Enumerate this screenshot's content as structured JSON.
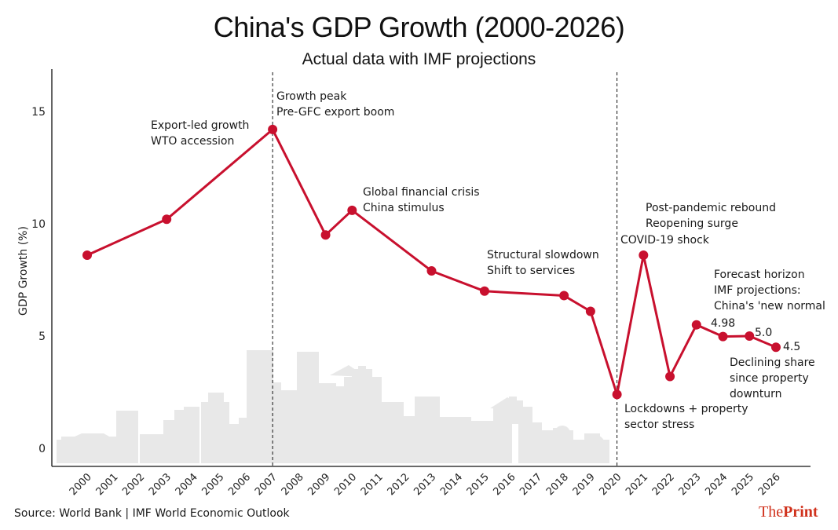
{
  "header": {
    "title": "China's GDP Growth (2000-2026)",
    "subtitle": "Actual data with IMF projections"
  },
  "footer": {
    "source": "Source: World Bank | IMF World Economic Outlook",
    "logo_the": "The",
    "logo_print": "Print"
  },
  "colors": {
    "line": "#c8102e",
    "skyline": "#e8e8e8",
    "logo": "#d0311c"
  },
  "chart_data": {
    "type": "line",
    "title": "China's GDP Growth (2000-2026)",
    "subtitle": "Actual data with IMF projections",
    "xlabel": "",
    "ylabel": "GDP Growth (%)",
    "ylim": [
      0,
      16.5
    ],
    "yticks": [
      0,
      5,
      10,
      15
    ],
    "grid": false,
    "legend": "none",
    "categories": [
      "2000",
      "2001",
      "2002",
      "2003",
      "2004",
      "2005",
      "2006",
      "2007",
      "2008",
      "2009",
      "2010",
      "2011",
      "2012",
      "2013",
      "2014",
      "2015",
      "2016",
      "2017",
      "2018",
      "2019",
      "2020",
      "2021",
      "2022",
      "2023",
      "2024",
      "2025",
      "2026"
    ],
    "series": [
      {
        "name": "GDP Growth",
        "points": [
          {
            "x": "2000",
            "y": 8.6
          },
          {
            "x": "2003",
            "y": 10.2
          },
          {
            "x": "2007",
            "y": 14.2
          },
          {
            "x": "2009",
            "y": 9.5
          },
          {
            "x": "2010",
            "y": 10.6
          },
          {
            "x": "2013",
            "y": 7.9
          },
          {
            "x": "2015",
            "y": 7.0
          },
          {
            "x": "2018",
            "y": 6.8
          },
          {
            "x": "2019",
            "y": 6.1
          },
          {
            "x": "2020",
            "y": 2.4
          },
          {
            "x": "2021",
            "y": 8.6
          },
          {
            "x": "2022",
            "y": 3.2
          },
          {
            "x": "2023",
            "y": 5.5
          },
          {
            "x": "2024",
            "y": 4.98
          },
          {
            "x": "2025",
            "y": 5.0
          },
          {
            "x": "2026",
            "y": 4.5
          }
        ]
      }
    ],
    "vlines": [
      "2007",
      "2020"
    ],
    "value_labels": [
      {
        "x": "2024",
        "text": "4.98"
      },
      {
        "x": "2025",
        "text": "5.0"
      },
      {
        "x": "2026",
        "text": "4.5"
      }
    ],
    "annotations": [
      {
        "anchor": "2003",
        "lines": [
          "Export-led growth",
          "WTO accession"
        ]
      },
      {
        "anchor": "2007",
        "lines": [
          "Growth peak",
          "Pre-GFC export boom"
        ]
      },
      {
        "anchor": "2010",
        "lines": [
          "Global financial crisis",
          "China stimulus"
        ]
      },
      {
        "anchor": "2015",
        "lines": [
          "Structural slowdown",
          "Shift to services"
        ]
      },
      {
        "anchor": "2021",
        "lines": [
          "Post-pandemic rebound",
          "Reopening surge"
        ]
      },
      {
        "anchor": "2020",
        "lines": [
          "COVID-19 shock"
        ]
      },
      {
        "anchor": "2020-low",
        "lines": [
          "Lockdowns + property",
          "sector stress"
        ]
      },
      {
        "anchor": "2024",
        "lines": [
          "Forecast horizon",
          "IMF projections:",
          "China's 'new normal"
        ]
      },
      {
        "anchor": "2026",
        "lines": [
          "Declining share",
          "since property",
          "downturn"
        ]
      }
    ]
  }
}
